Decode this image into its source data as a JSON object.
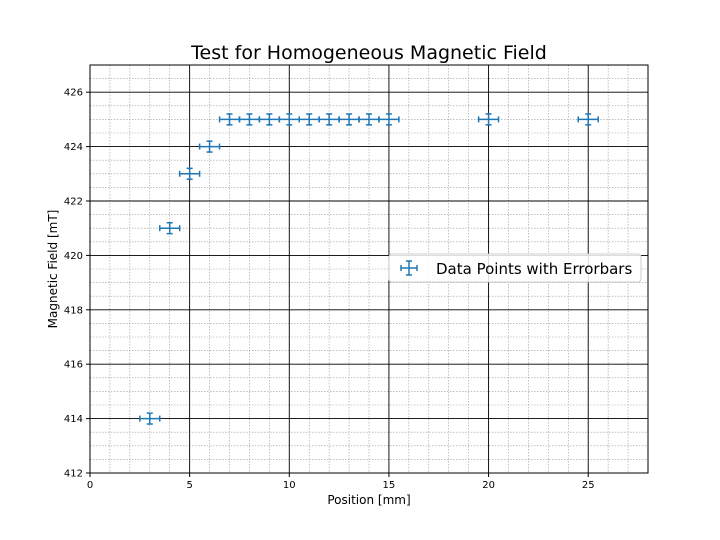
{
  "chart_data": {
    "type": "scatter",
    "title": "Test for Homogeneous Magnetic Field",
    "xlabel": "Position [mm]",
    "ylabel": "Magnetic Field [mT]",
    "xlim": [
      0,
      28
    ],
    "ylim": [
      412,
      427
    ],
    "xticks": [
      0,
      5,
      10,
      15,
      20,
      25
    ],
    "yticks": [
      412,
      414,
      416,
      418,
      420,
      422,
      424,
      426
    ],
    "x_minor_step": 1,
    "y_minor_step": 0.5,
    "grid": "major and minor",
    "legend_position": "center-right",
    "series": [
      {
        "name": "Data Points with Errorbars",
        "color": "#1f77b4",
        "x_error": 0.5,
        "y_error": 0.2,
        "points": [
          {
            "x": 3,
            "y": 414
          },
          {
            "x": 4,
            "y": 421
          },
          {
            "x": 5,
            "y": 423
          },
          {
            "x": 6,
            "y": 424
          },
          {
            "x": 7,
            "y": 425
          },
          {
            "x": 8,
            "y": 425
          },
          {
            "x": 9,
            "y": 425
          },
          {
            "x": 10,
            "y": 425
          },
          {
            "x": 11,
            "y": 425
          },
          {
            "x": 12,
            "y": 425
          },
          {
            "x": 13,
            "y": 425
          },
          {
            "x": 14,
            "y": 425
          },
          {
            "x": 15,
            "y": 425
          },
          {
            "x": 20,
            "y": 425
          },
          {
            "x": 25,
            "y": 425
          }
        ]
      }
    ]
  }
}
